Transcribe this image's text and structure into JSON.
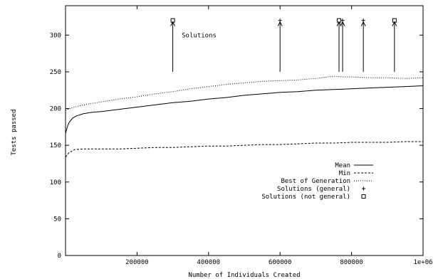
{
  "chart_data": {
    "type": "line",
    "title": "",
    "xlabel": "Number of Individuals Created",
    "ylabel": "Tests passed",
    "xlim": [
      0,
      1000000
    ],
    "ylim": [
      0,
      340
    ],
    "x_ticks": [
      200000,
      400000,
      600000,
      800000,
      1000000
    ],
    "x_tick_labels": [
      "200000",
      "400000",
      "600000",
      "800000",
      "1e+06"
    ],
    "y_ticks": [
      0,
      50,
      100,
      150,
      200,
      250,
      300
    ],
    "y_tick_labels": [
      "0",
      "50",
      "100",
      "150",
      "200",
      "250",
      "300"
    ],
    "grid": false,
    "legend_position": "center-right",
    "series": [
      {
        "name": "Mean",
        "style": "solid",
        "x": [
          0,
          5000,
          10000,
          20000,
          30000,
          50000,
          75000,
          100000,
          150000,
          200000,
          250000,
          300000,
          350000,
          400000,
          450000,
          500000,
          550000,
          600000,
          650000,
          700000,
          750000,
          800000,
          850000,
          900000,
          950000,
          1000000
        ],
        "values": [
          166,
          175,
          181,
          187,
          190,
          193,
          195,
          196,
          199,
          202,
          205,
          208,
          210,
          213,
          215,
          218,
          220,
          222,
          223,
          225,
          226,
          227,
          228,
          229,
          230,
          231
        ]
      },
      {
        "name": "Min",
        "style": "dashed",
        "x": [
          0,
          10000,
          25000,
          50000,
          100000,
          150000,
          200000,
          250000,
          300000,
          350000,
          400000,
          450000,
          500000,
          550000,
          600000,
          650000,
          700000,
          750000,
          800000,
          850000,
          900000,
          950000,
          1000000
        ],
        "values": [
          134,
          140,
          144,
          145,
          145,
          145,
          146,
          147,
          147,
          148,
          149,
          149,
          150,
          151,
          151,
          152,
          153,
          153,
          154,
          154,
          154,
          155,
          155
        ]
      },
      {
        "name": "Best of Generation",
        "style": "dotted",
        "x": [
          0,
          25000,
          50000,
          100000,
          150000,
          200000,
          250000,
          300000,
          350000,
          400000,
          450000,
          500000,
          550000,
          600000,
          650000,
          700000,
          750000,
          780000,
          800000,
          850000,
          900000,
          950000,
          1000000
        ],
        "values": [
          198,
          202,
          205,
          209,
          213,
          216,
          220,
          223,
          227,
          230,
          233,
          235,
          237,
          238,
          239,
          241,
          244,
          243,
          243,
          242,
          242,
          241,
          242
        ]
      }
    ],
    "markers": [
      {
        "series": "Solutions (general)",
        "symbol": "plus",
        "x": 600000,
        "y": 320
      },
      {
        "series": "Solutions (general)",
        "symbol": "plus",
        "x": 775000,
        "y": 320
      },
      {
        "series": "Solutions (general)",
        "symbol": "plus",
        "x": 833000,
        "y": 320
      },
      {
        "series": "Solutions (not general)",
        "symbol": "square",
        "x": 300000,
        "y": 320
      },
      {
        "series": "Solutions (not general)",
        "symbol": "square",
        "x": 765000,
        "y": 320
      },
      {
        "series": "Solutions (not general)",
        "symbol": "square",
        "x": 920000,
        "y": 320
      }
    ],
    "arrows": [
      {
        "x": 300000,
        "y_from": 250,
        "y_to": 318
      },
      {
        "x": 600000,
        "y_from": 250,
        "y_to": 318
      },
      {
        "x": 765000,
        "y_from": 250,
        "y_to": 318
      },
      {
        "x": 775000,
        "y_from": 250,
        "y_to": 318
      },
      {
        "x": 833000,
        "y_from": 250,
        "y_to": 318
      },
      {
        "x": 920000,
        "y_from": 250,
        "y_to": 318
      }
    ],
    "annotation": {
      "text": "Solutions",
      "x": 325000,
      "y": 300
    },
    "legend": [
      {
        "label": "Mean",
        "style": "solid"
      },
      {
        "label": "Min",
        "style": "dashed"
      },
      {
        "label": "Best of Generation",
        "style": "dotted"
      },
      {
        "label": "Solutions (general)",
        "style": "plus"
      },
      {
        "label": "Solutions (not general)",
        "style": "square"
      }
    ]
  }
}
